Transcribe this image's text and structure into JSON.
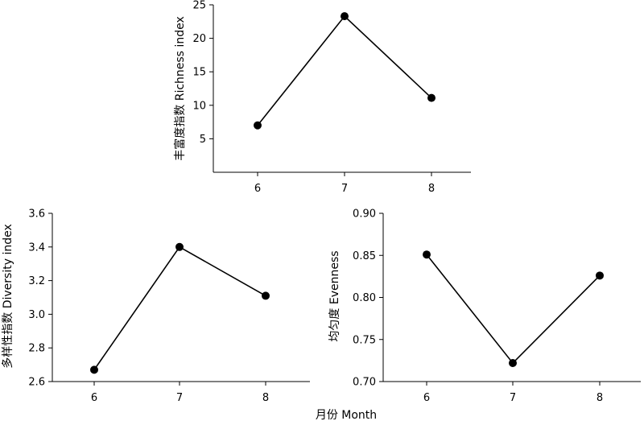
{
  "chart_data": [
    {
      "type": "line",
      "categories": [
        "6",
        "7",
        "8"
      ],
      "values": [
        7.0,
        23.3,
        11.1
      ],
      "ylabel": "丰富度指数  Richness index",
      "ylim": [
        0,
        25
      ],
      "yticks": [
        5,
        10,
        15,
        20,
        25
      ],
      "grid": false
    },
    {
      "type": "line",
      "categories": [
        "6",
        "7",
        "8"
      ],
      "values": [
        2.67,
        3.4,
        3.11
      ],
      "ylabel": "多样性指数  Diversity index",
      "ylim": [
        2.6,
        3.6
      ],
      "yticks": [
        2.6,
        2.8,
        3.0,
        3.2,
        3.4,
        3.6
      ],
      "grid": false
    },
    {
      "type": "line",
      "categories": [
        "6",
        "7",
        "8"
      ],
      "values": [
        0.851,
        0.722,
        0.826
      ],
      "ylabel": "均匀度  Evenness",
      "ylim": [
        0.7,
        0.9
      ],
      "yticks": [
        0.7,
        0.75,
        0.8,
        0.85,
        0.9
      ],
      "grid": false
    }
  ],
  "shared_xlabel": "月份  Month",
  "colors": {
    "line": "#000000",
    "marker": "#000000"
  }
}
